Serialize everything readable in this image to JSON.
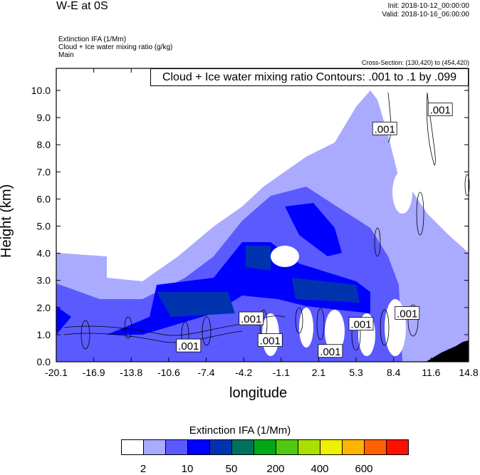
{
  "header": {
    "title": "W-E at 0S",
    "init": "Init: 2018-10-12_00:00:00",
    "valid": "Valid: 2018-10-16_06:00:00",
    "fields": [
      "Extinction IFA   (1/Mm)",
      "Cloud + Ice water mixing ratio   (g/kg)",
      "Main"
    ],
    "cross_section": "Cross-Section: (130,420) to (454,420)"
  },
  "chart_data": {
    "type": "contour",
    "title": "Cloud + Ice water mixing ratio Contours: .001 to .1 by .099",
    "xlabel": "longitude",
    "ylabel": "Height (km)",
    "xlim": [
      -20.1,
      14.8
    ],
    "ylim": [
      0,
      10.8
    ],
    "xticks": [
      "-20.1",
      "-16.9",
      "-13.8",
      "-10.6",
      "-7.4",
      "-4.2",
      "-1.1",
      "2.1",
      "5.3",
      "8.4",
      "11.6",
      "14.8"
    ],
    "yticks": [
      "0.0",
      "1.0",
      "2.0",
      "3.0",
      "4.0",
      "5.0",
      "6.0",
      "7.0",
      "8.0",
      "9.0",
      "10.0"
    ],
    "contour_labels": [
      {
        "text": ".001",
        "lon": 7.7,
        "km": 8.6
      },
      {
        "text": ".001",
        "lon": 12.4,
        "km": 9.3
      },
      {
        "text": ".001",
        "lon": -8.9,
        "km": 0.6
      },
      {
        "text": ".001",
        "lon": -3.6,
        "km": 1.6
      },
      {
        "text": ".001",
        "lon": -2.0,
        "km": 0.8
      },
      {
        "text": ".001",
        "lon": 3.1,
        "km": 0.4
      },
      {
        "text": ".001",
        "lon": 5.7,
        "km": 1.4
      },
      {
        "text": ".001",
        "lon": 9.6,
        "km": 1.8
      }
    ],
    "colorbar": {
      "title": "Extinction IFA  (1/Mm)",
      "labels": [
        "2",
        "10",
        "50",
        "200",
        "400",
        "600"
      ],
      "colors": [
        "#ffffff",
        "#aaaaff",
        "#5a5aff",
        "#0000ff",
        "#0033b0",
        "#007060",
        "#00a818",
        "#50c810",
        "#a8e000",
        "#f0f000",
        "#ffb400",
        "#ff6000",
        "#ff1000"
      ]
    }
  }
}
